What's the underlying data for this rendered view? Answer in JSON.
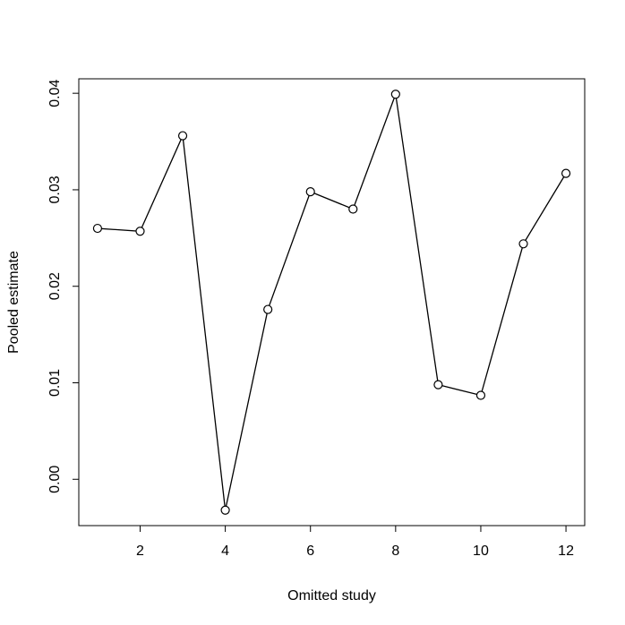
{
  "chart_data": {
    "type": "line",
    "title": "",
    "xlabel": "Omitted study",
    "ylabel": "Pooled estimate",
    "x": [
      1,
      2,
      3,
      4,
      5,
      6,
      7,
      8,
      9,
      10,
      11,
      12
    ],
    "series": [
      {
        "values": [
          0.026,
          0.0257,
          0.0356,
          -0.0032,
          0.0176,
          0.0298,
          0.028,
          0.0399,
          0.0098,
          0.0087,
          0.0244,
          0.0317
        ]
      }
    ],
    "xlim": [
      0.56,
      12.44
    ],
    "ylim": [
      -0.0048,
      0.0415
    ],
    "xticks": [
      2,
      4,
      6,
      8,
      10,
      12
    ],
    "xtick_labels": [
      "2",
      "4",
      "6",
      "8",
      "10",
      "12"
    ],
    "yticks": [
      0.0,
      0.01,
      0.02,
      0.03,
      0.04
    ],
    "ytick_labels": [
      "0.00",
      "0.01",
      "0.02",
      "0.03",
      "0.04"
    ],
    "grid": false,
    "legend": "none",
    "marker": "open-circle",
    "line_color": "#000000"
  }
}
